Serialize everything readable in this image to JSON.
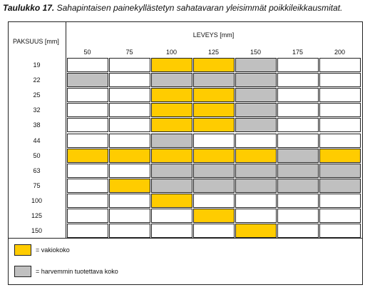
{
  "header": {
    "number": "Taulukko 17.",
    "title": "Sahapintaisen painekyllästetyn sahatavaran yleisimmät poikkileikkausmitat."
  },
  "table": {
    "row_header": "PAKSUUS [mm]",
    "column_header": "LEVEYS [mm]",
    "columns": [
      "50",
      "75",
      "100",
      "125",
      "150",
      "175",
      "200"
    ],
    "rows": [
      {
        "label": "19",
        "cells": [
          "#ffffff",
          "#ffffff",
          "#ffcc00",
          "#ffcc00",
          "#c0c0c0",
          "#ffffff",
          "#ffffff"
        ]
      },
      {
        "label": "22",
        "cells": [
          "#c0c0c0",
          "#ffffff",
          "#c0c0c0",
          "#c0c0c0",
          "#c0c0c0",
          "#ffffff",
          "#ffffff"
        ]
      },
      {
        "label": "25",
        "cells": [
          "#ffffff",
          "#ffffff",
          "#ffcc00",
          "#ffcc00",
          "#c0c0c0",
          "#ffffff",
          "#ffffff"
        ]
      },
      {
        "label": "32",
        "cells": [
          "#ffffff",
          "#ffffff",
          "#ffcc00",
          "#ffcc00",
          "#c0c0c0",
          "#ffffff",
          "#ffffff"
        ]
      },
      {
        "label": "38",
        "cells": [
          "#ffffff",
          "#ffffff",
          "#ffcc00",
          "#ffcc00",
          "#c0c0c0",
          "#ffffff",
          "#ffffff"
        ]
      },
      {
        "label": "44",
        "cells": [
          "#ffffff",
          "#ffffff",
          "#c0c0c0",
          "#ffffff",
          "#ffffff",
          "#ffffff",
          "#ffffff"
        ]
      },
      {
        "label": "50",
        "cells": [
          "#ffcc00",
          "#ffcc00",
          "#ffcc00",
          "#ffcc00",
          "#ffcc00",
          "#c0c0c0",
          "#ffcc00"
        ]
      },
      {
        "label": "63",
        "cells": [
          "#ffffff",
          "#ffffff",
          "#c0c0c0",
          "#c0c0c0",
          "#c0c0c0",
          "#c0c0c0",
          "#c0c0c0"
        ]
      },
      {
        "label": "75",
        "cells": [
          "#ffffff",
          "#ffcc00",
          "#c0c0c0",
          "#c0c0c0",
          "#c0c0c0",
          "#c0c0c0",
          "#c0c0c0"
        ]
      },
      {
        "label": "100",
        "cells": [
          "#ffffff",
          "#ffffff",
          "#ffcc00",
          "#ffffff",
          "#ffffff",
          "#ffffff",
          "#ffffff"
        ]
      },
      {
        "label": "125",
        "cells": [
          "#ffffff",
          "#ffffff",
          "#ffffff",
          "#ffcc00",
          "#ffffff",
          "#ffffff",
          "#ffffff"
        ]
      },
      {
        "label": "150",
        "cells": [
          "#ffffff",
          "#ffffff",
          "#ffffff",
          "#ffffff",
          "#ffcc00",
          "#ffffff",
          "#ffffff"
        ]
      }
    ]
  },
  "legend": [
    {
      "color": "#ffcc00",
      "label": "= vakiokoko"
    },
    {
      "color": "#c0c0c0",
      "label": "= harvemmin tuotettava koko"
    }
  ]
}
